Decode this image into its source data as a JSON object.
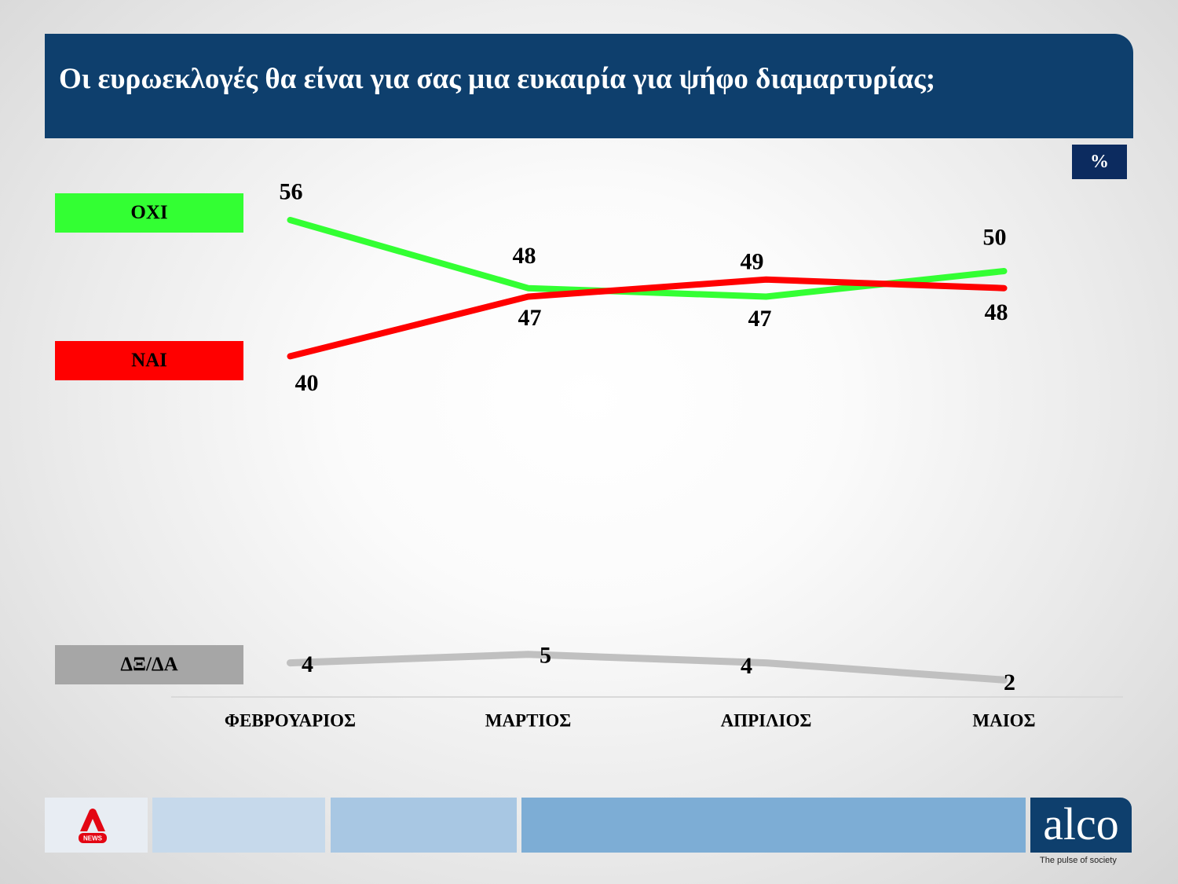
{
  "colors": {
    "header_bg": "#0e3f6d",
    "unit_badge_bg": "#0c2b5f",
    "axis": "#d9d9d9",
    "label_text": "#000000"
  },
  "chart_data": {
    "type": "line",
    "title": "Οι ευρωεκλογές θα είναι για σας μια ευκαιρία για ψήφο διαμαρτυρίας;",
    "unit": "%",
    "categories": [
      "ΦΕΒΡΟΥΑΡΙΟΣ",
      "ΜΑΡΤΙΟΣ",
      "ΑΠΡΙΛΙΟΣ",
      "ΜΑΙΟΣ"
    ],
    "series": [
      {
        "name": "ΟΧΙ",
        "values": [
          56,
          48,
          47,
          50
        ],
        "color": "#33ff33",
        "legend_color": "#33ff33"
      },
      {
        "name": "ΝΑΙ",
        "values": [
          40,
          47,
          49,
          48
        ],
        "color": "#ff0000",
        "legend_color": "#ff0000"
      },
      {
        "name": "ΔΞ/ΔΑ",
        "values": [
          4,
          5,
          4,
          2
        ],
        "color": "#c0c0c0",
        "legend_color": "#a6a6a6"
      }
    ],
    "ylim": [
      0,
      60
    ],
    "grid": false,
    "legend": "left",
    "data_labels": true
  },
  "footer": {
    "stripes": [
      "#e8edf3",
      "#c6d9eb",
      "#a8c7e3",
      "#7dadd5"
    ],
    "alpha_news": {
      "icon": "alpha-news-logo",
      "logo_text": "NEWS",
      "color": "#e30613"
    },
    "alco": {
      "logo_text": "alco",
      "tagline": "The pulse of society",
      "color": "#0e3f6d"
    }
  }
}
